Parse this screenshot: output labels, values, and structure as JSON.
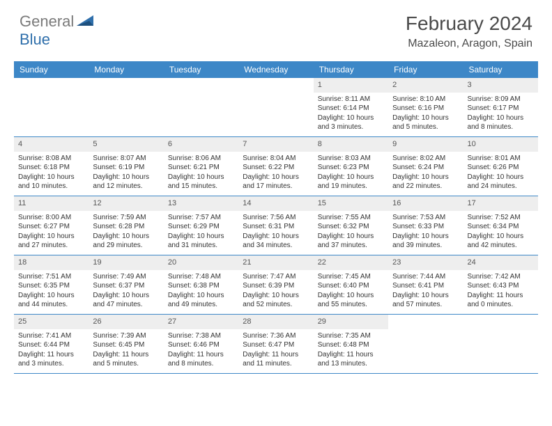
{
  "brand": {
    "part1": "General",
    "part2": "Blue"
  },
  "title": "February 2024",
  "location": "Mazaleon, Aragon, Spain",
  "colors": {
    "header_bar": "#3d87c7",
    "day_number_bg": "#eeeeee",
    "text": "#333333",
    "brand_gray": "#7a7a7a",
    "brand_blue": "#2f6fab",
    "background": "#ffffff"
  },
  "weekdays": [
    "Sunday",
    "Monday",
    "Tuesday",
    "Wednesday",
    "Thursday",
    "Friday",
    "Saturday"
  ],
  "weeks": [
    [
      {
        "n": "",
        "sr": "",
        "ss": "",
        "dl": ""
      },
      {
        "n": "",
        "sr": "",
        "ss": "",
        "dl": ""
      },
      {
        "n": "",
        "sr": "",
        "ss": "",
        "dl": ""
      },
      {
        "n": "",
        "sr": "",
        "ss": "",
        "dl": ""
      },
      {
        "n": "1",
        "sr": "Sunrise: 8:11 AM",
        "ss": "Sunset: 6:14 PM",
        "dl": "Daylight: 10 hours and 3 minutes."
      },
      {
        "n": "2",
        "sr": "Sunrise: 8:10 AM",
        "ss": "Sunset: 6:16 PM",
        "dl": "Daylight: 10 hours and 5 minutes."
      },
      {
        "n": "3",
        "sr": "Sunrise: 8:09 AM",
        "ss": "Sunset: 6:17 PM",
        "dl": "Daylight: 10 hours and 8 minutes."
      }
    ],
    [
      {
        "n": "4",
        "sr": "Sunrise: 8:08 AM",
        "ss": "Sunset: 6:18 PM",
        "dl": "Daylight: 10 hours and 10 minutes."
      },
      {
        "n": "5",
        "sr": "Sunrise: 8:07 AM",
        "ss": "Sunset: 6:19 PM",
        "dl": "Daylight: 10 hours and 12 minutes."
      },
      {
        "n": "6",
        "sr": "Sunrise: 8:06 AM",
        "ss": "Sunset: 6:21 PM",
        "dl": "Daylight: 10 hours and 15 minutes."
      },
      {
        "n": "7",
        "sr": "Sunrise: 8:04 AM",
        "ss": "Sunset: 6:22 PM",
        "dl": "Daylight: 10 hours and 17 minutes."
      },
      {
        "n": "8",
        "sr": "Sunrise: 8:03 AM",
        "ss": "Sunset: 6:23 PM",
        "dl": "Daylight: 10 hours and 19 minutes."
      },
      {
        "n": "9",
        "sr": "Sunrise: 8:02 AM",
        "ss": "Sunset: 6:24 PM",
        "dl": "Daylight: 10 hours and 22 minutes."
      },
      {
        "n": "10",
        "sr": "Sunrise: 8:01 AM",
        "ss": "Sunset: 6:26 PM",
        "dl": "Daylight: 10 hours and 24 minutes."
      }
    ],
    [
      {
        "n": "11",
        "sr": "Sunrise: 8:00 AM",
        "ss": "Sunset: 6:27 PM",
        "dl": "Daylight: 10 hours and 27 minutes."
      },
      {
        "n": "12",
        "sr": "Sunrise: 7:59 AM",
        "ss": "Sunset: 6:28 PM",
        "dl": "Daylight: 10 hours and 29 minutes."
      },
      {
        "n": "13",
        "sr": "Sunrise: 7:57 AM",
        "ss": "Sunset: 6:29 PM",
        "dl": "Daylight: 10 hours and 31 minutes."
      },
      {
        "n": "14",
        "sr": "Sunrise: 7:56 AM",
        "ss": "Sunset: 6:31 PM",
        "dl": "Daylight: 10 hours and 34 minutes."
      },
      {
        "n": "15",
        "sr": "Sunrise: 7:55 AM",
        "ss": "Sunset: 6:32 PM",
        "dl": "Daylight: 10 hours and 37 minutes."
      },
      {
        "n": "16",
        "sr": "Sunrise: 7:53 AM",
        "ss": "Sunset: 6:33 PM",
        "dl": "Daylight: 10 hours and 39 minutes."
      },
      {
        "n": "17",
        "sr": "Sunrise: 7:52 AM",
        "ss": "Sunset: 6:34 PM",
        "dl": "Daylight: 10 hours and 42 minutes."
      }
    ],
    [
      {
        "n": "18",
        "sr": "Sunrise: 7:51 AM",
        "ss": "Sunset: 6:35 PM",
        "dl": "Daylight: 10 hours and 44 minutes."
      },
      {
        "n": "19",
        "sr": "Sunrise: 7:49 AM",
        "ss": "Sunset: 6:37 PM",
        "dl": "Daylight: 10 hours and 47 minutes."
      },
      {
        "n": "20",
        "sr": "Sunrise: 7:48 AM",
        "ss": "Sunset: 6:38 PM",
        "dl": "Daylight: 10 hours and 49 minutes."
      },
      {
        "n": "21",
        "sr": "Sunrise: 7:47 AM",
        "ss": "Sunset: 6:39 PM",
        "dl": "Daylight: 10 hours and 52 minutes."
      },
      {
        "n": "22",
        "sr": "Sunrise: 7:45 AM",
        "ss": "Sunset: 6:40 PM",
        "dl": "Daylight: 10 hours and 55 minutes."
      },
      {
        "n": "23",
        "sr": "Sunrise: 7:44 AM",
        "ss": "Sunset: 6:41 PM",
        "dl": "Daylight: 10 hours and 57 minutes."
      },
      {
        "n": "24",
        "sr": "Sunrise: 7:42 AM",
        "ss": "Sunset: 6:43 PM",
        "dl": "Daylight: 11 hours and 0 minutes."
      }
    ],
    [
      {
        "n": "25",
        "sr": "Sunrise: 7:41 AM",
        "ss": "Sunset: 6:44 PM",
        "dl": "Daylight: 11 hours and 3 minutes."
      },
      {
        "n": "26",
        "sr": "Sunrise: 7:39 AM",
        "ss": "Sunset: 6:45 PM",
        "dl": "Daylight: 11 hours and 5 minutes."
      },
      {
        "n": "27",
        "sr": "Sunrise: 7:38 AM",
        "ss": "Sunset: 6:46 PM",
        "dl": "Daylight: 11 hours and 8 minutes."
      },
      {
        "n": "28",
        "sr": "Sunrise: 7:36 AM",
        "ss": "Sunset: 6:47 PM",
        "dl": "Daylight: 11 hours and 11 minutes."
      },
      {
        "n": "29",
        "sr": "Sunrise: 7:35 AM",
        "ss": "Sunset: 6:48 PM",
        "dl": "Daylight: 11 hours and 13 minutes."
      },
      {
        "n": "",
        "sr": "",
        "ss": "",
        "dl": ""
      },
      {
        "n": "",
        "sr": "",
        "ss": "",
        "dl": ""
      }
    ]
  ]
}
